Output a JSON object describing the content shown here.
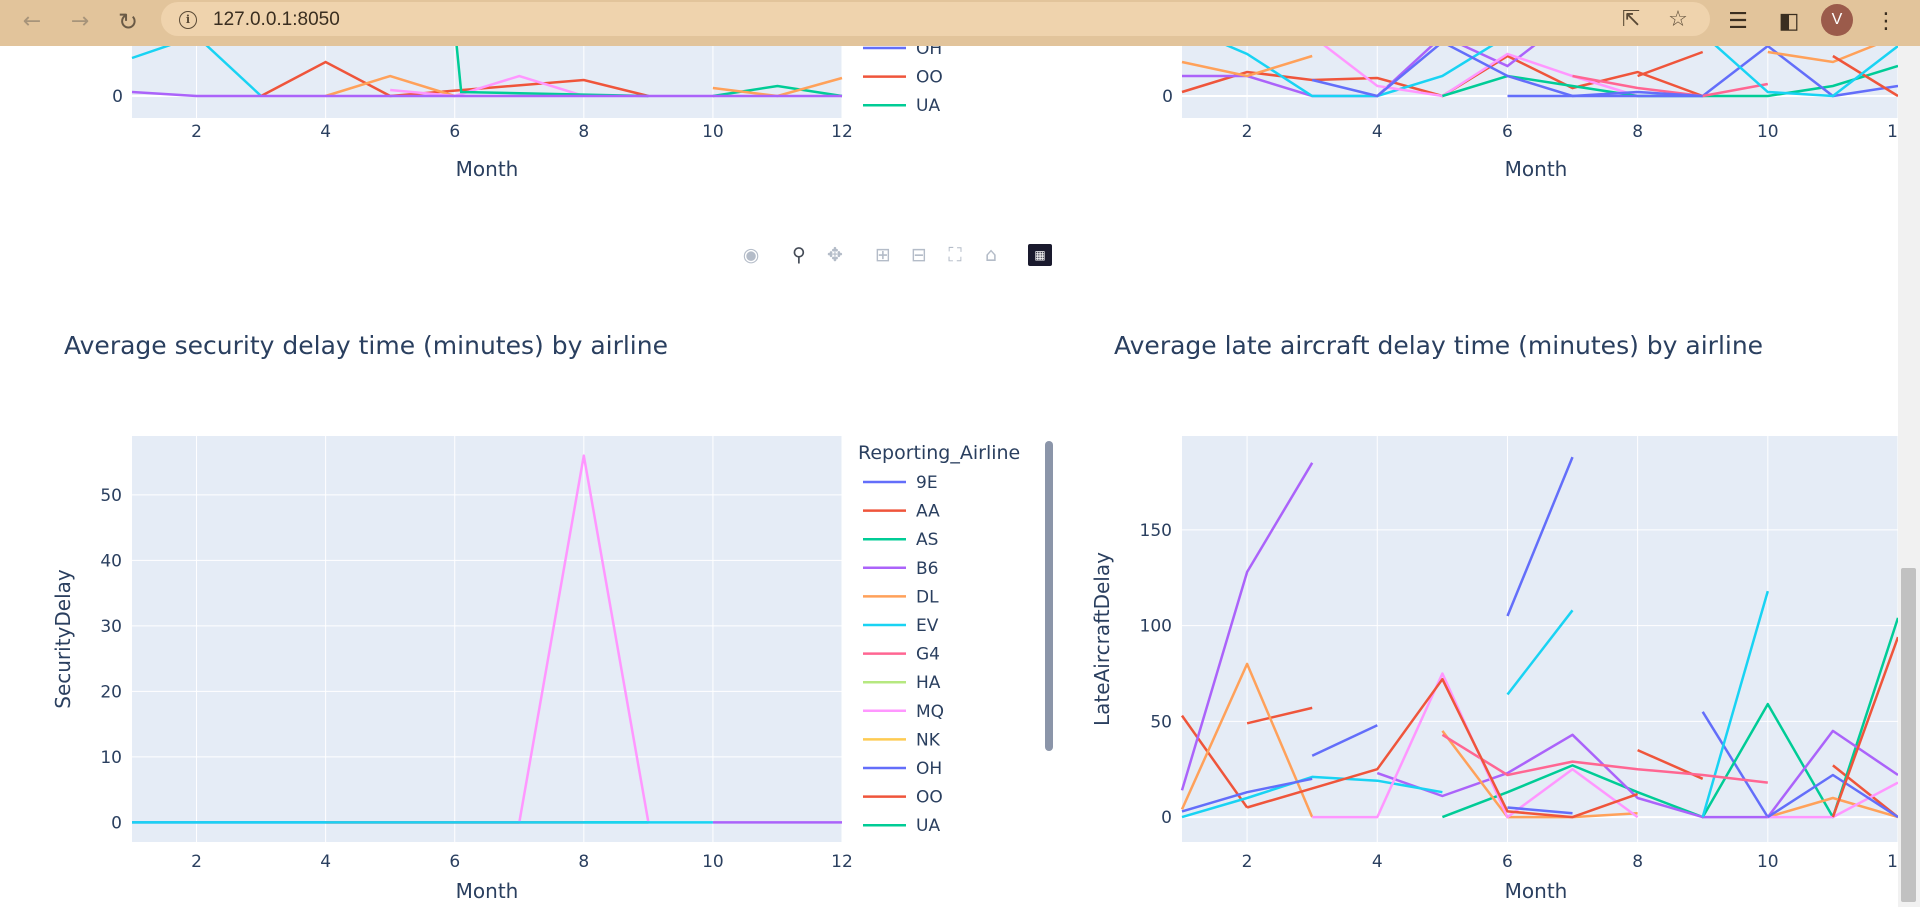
{
  "browser": {
    "url": "127.0.0.1:8050",
    "profile_initial": "V",
    "icons": [
      "back-icon",
      "forward-icon",
      "reload-icon",
      "info-icon",
      "share-icon",
      "star-icon",
      "media-icon",
      "side-panel-icon",
      "menu-icon"
    ]
  },
  "modebar": {
    "buttons": [
      "camera-icon",
      "zoom-icon",
      "pan-icon",
      "zoom-in-icon",
      "zoom-out-icon",
      "autoscale-icon",
      "reset-axes-icon",
      "plotly-logo-icon"
    ]
  },
  "colors": {
    "9E": "#636efa",
    "AA": "#ef553b",
    "AS": "#00cc96",
    "B6": "#ab63fa",
    "DL": "#ffa15a",
    "EV": "#19d3f3",
    "G4": "#ff6692",
    "HA": "#b6e880",
    "MQ": "#ff97ff",
    "NK": "#fecb52",
    "OH": "#636efa",
    "OO": "#ef553b",
    "UA": "#00cc96",
    "plot_bg": "#e5ecf6",
    "axis_text": "#2a3f5f",
    "grid": "#ffffff"
  },
  "top_left_partial": {
    "xlabel": "Month",
    "y_tick": "0",
    "x_ticks": [
      "2",
      "4",
      "6",
      "8",
      "10",
      "12"
    ],
    "legend_visible": [
      "OH",
      "OO",
      "UA"
    ]
  },
  "top_right_partial": {
    "xlabel": "Month",
    "y_tick": "0",
    "x_ticks": [
      "2",
      "4",
      "6",
      "8",
      "10",
      "12"
    ]
  },
  "security_chart": {
    "title": "Average security delay time (minutes) by airline",
    "xlabel": "Month",
    "ylabel": "SecurityDelay",
    "legend_title": "Reporting_Airline",
    "legend": [
      "9E",
      "AA",
      "AS",
      "B6",
      "DL",
      "EV",
      "G4",
      "HA",
      "MQ",
      "NK",
      "OH",
      "OO",
      "UA"
    ],
    "x_ticks": [
      "2",
      "4",
      "6",
      "8",
      "10",
      "12"
    ],
    "y_ticks": [
      "0",
      "10",
      "20",
      "30",
      "40",
      "50"
    ]
  },
  "late_aircraft_chart": {
    "title": "Average late aircraft delay time (minutes) by airline",
    "xlabel": "Month",
    "ylabel": "LateAircraftDelay",
    "x_ticks": [
      "2",
      "4",
      "6",
      "8",
      "10",
      "12"
    ],
    "y_ticks": [
      "0",
      "50",
      "100",
      "150"
    ]
  },
  "chart_data": [
    {
      "type": "line",
      "title": "Average security delay time (minutes) by airline",
      "xlabel": "Month",
      "ylabel": "SecurityDelay",
      "xlim": [
        1,
        12
      ],
      "ylim": [
        -3,
        59
      ],
      "legend_title": "Reporting_Airline",
      "series": [
        {
          "name": "9E",
          "x": [
            1,
            2,
            3,
            4
          ],
          "y": [
            0,
            0,
            0,
            0
          ]
        },
        {
          "name": "AA",
          "x": [
            4,
            5,
            6,
            7,
            8
          ],
          "y": [
            0,
            0,
            0,
            0,
            0
          ]
        },
        {
          "name": "AS",
          "x": [
            8,
            9
          ],
          "y": [
            0,
            0
          ]
        },
        {
          "name": "B6",
          "x": [
            10,
            11,
            12
          ],
          "y": [
            0,
            0,
            0
          ]
        },
        {
          "name": "G4",
          "x": [
            4,
            5,
            6,
            7
          ],
          "y": [
            0,
            0,
            0,
            0
          ]
        },
        {
          "name": "MQ",
          "x": [
            7,
            8,
            9
          ],
          "y": [
            0,
            56,
            0
          ]
        },
        {
          "name": "EV",
          "x": [
            1,
            2,
            3,
            4,
            9,
            10
          ],
          "y": [
            0,
            0,
            0,
            0,
            0,
            0
          ]
        }
      ]
    },
    {
      "type": "line",
      "title": "Average late aircraft delay time (minutes) by airline",
      "xlabel": "Month",
      "ylabel": "LateAircraftDelay",
      "xlim": [
        1,
        12
      ],
      "ylim": [
        -13,
        199
      ],
      "series": [
        {
          "name": "9E",
          "segments": [
            {
              "x": [
                3,
                4
              ],
              "y": [
                32,
                48
              ]
            },
            {
              "x": [
                6,
                7
              ],
              "y": [
                105,
                188
              ]
            },
            {
              "x": [
                9,
                10
              ],
              "y": [
                55,
                0
              ]
            }
          ]
        },
        {
          "name": "AA",
          "segments": [
            {
              "x": [
                1,
                2
              ],
              "y": [
                53,
                5
              ]
            },
            {
              "x": [
                2,
                3
              ],
              "y": [
                49,
                57
              ]
            },
            {
              "x": [
                8,
                9
              ],
              "y": [
                35,
                20
              ]
            },
            {
              "x": [
                11,
                12
              ],
              "y": [
                27,
                0
              ]
            }
          ]
        },
        {
          "name": "AS",
          "segments": [
            {
              "x": [
                5,
                6,
                7,
                8,
                9,
                10,
                11,
                12
              ],
              "y": [
                0,
                13,
                27,
                13,
                0,
                59,
                0,
                104
              ]
            }
          ]
        },
        {
          "name": "B6",
          "segments": [
            {
              "x": [
                1,
                2,
                3
              ],
              "y": [
                14,
                128,
                185
              ]
            },
            {
              "x": [
                4,
                5,
                6,
                7,
                8,
                9,
                10,
                11,
                12
              ],
              "y": [
                23,
                11,
                23,
                43,
                10,
                0,
                0,
                45,
                22
              ]
            }
          ]
        },
        {
          "name": "DL",
          "segments": [
            {
              "x": [
                1,
                2,
                3
              ],
              "y": [
                4,
                80,
                0
              ]
            },
            {
              "x": [
                5,
                6,
                7,
                8
              ],
              "y": [
                45,
                0,
                0,
                2
              ]
            },
            {
              "x": [
                10,
                11,
                12
              ],
              "y": [
                0,
                10,
                0
              ]
            }
          ]
        },
        {
          "name": "EV",
          "segments": [
            {
              "x": [
                1,
                2,
                3,
                4,
                5
              ],
              "y": [
                0,
                10,
                21,
                19,
                13
              ]
            },
            {
              "x": [
                6,
                7
              ],
              "y": [
                64,
                108
              ]
            },
            {
              "x": [
                9,
                10
              ],
              "y": [
                0,
                118
              ]
            }
          ]
        },
        {
          "name": "G4",
          "segments": [
            {
              "x": [
                5,
                6,
                7,
                8,
                9,
                10
              ],
              "y": [
                43,
                22,
                29,
                25,
                22,
                18
              ]
            }
          ]
        },
        {
          "name": "MQ",
          "segments": [
            {
              "x": [
                3,
                4,
                5,
                6,
                7,
                8
              ],
              "y": [
                0,
                0,
                75,
                0,
                25,
                0
              ]
            },
            {
              "x": [
                10,
                11,
                12
              ],
              "y": [
                0,
                0,
                18
              ]
            }
          ]
        },
        {
          "name": "OH",
          "segments": [
            {
              "x": [
                1,
                2,
                3
              ],
              "y": [
                3,
                13,
                20
              ]
            },
            {
              "x": [
                6,
                7
              ],
              "y": [
                5,
                2
              ]
            },
            {
              "x": [
                10,
                11,
                12
              ],
              "y": [
                0,
                22,
                0
              ]
            }
          ]
        },
        {
          "name": "OO",
          "segments": [
            {
              "x": [
                2,
                3,
                4,
                5,
                6,
                7,
                8
              ],
              "y": [
                5,
                15,
                25,
                72,
                3,
                0,
                12
              ]
            },
            {
              "x": [
                11,
                12
              ],
              "y": [
                0,
                94
              ]
            }
          ]
        }
      ]
    }
  ]
}
